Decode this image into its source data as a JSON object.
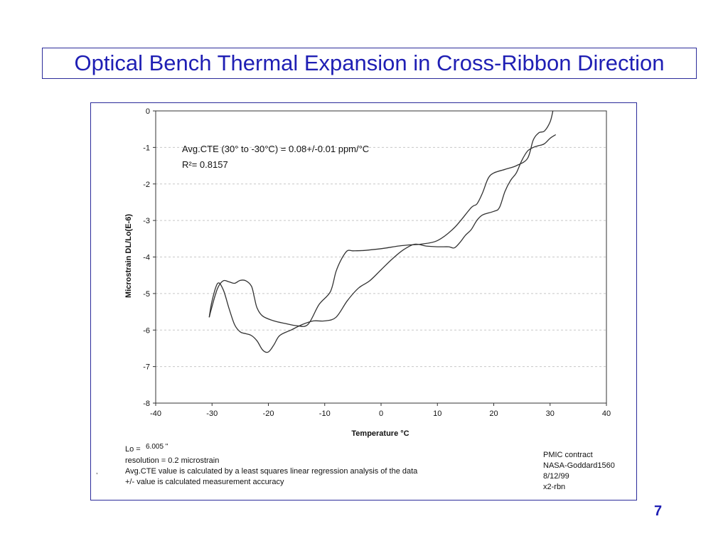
{
  "slide": {
    "title": "Optical Bench Thermal Expansion in Cross-Ribbon Direction",
    "number": "7"
  },
  "chart_data": {
    "type": "line",
    "xlabel": "Temperature °C",
    "ylabel": "Microstrain DL/Lo(E-6)",
    "xlim": [
      -40,
      40
    ],
    "ylim": [
      -8,
      0
    ],
    "x_ticks": [
      -40,
      -30,
      -20,
      -10,
      0,
      10,
      20,
      30,
      40
    ],
    "y_ticks": [
      0,
      -1,
      -2,
      -3,
      -4,
      -5,
      -6,
      -7,
      -8
    ],
    "grid": "horizontal dashed",
    "annotation": {
      "cte": "Avg.CTE (30° to -30°C) = 0.08+/-0.01 ppm/°C",
      "r2": "R²= 0.8157"
    },
    "series": [
      {
        "x": [
          -30.5,
          -30,
          -29,
          -28,
          -27,
          -26,
          -25,
          -24,
          -23,
          -22.5,
          -22,
          -21,
          -19,
          -17,
          -15,
          -13,
          -11,
          -9,
          -8,
          -7,
          -6,
          -5,
          -3,
          -1,
          1,
          3,
          5,
          7,
          10,
          13,
          16,
          17,
          18,
          19,
          20,
          22,
          24,
          26,
          27,
          28,
          29,
          30,
          30.5
        ],
        "y": [
          -5.65,
          -5.35,
          -4.85,
          -4.65,
          -4.68,
          -4.72,
          -4.64,
          -4.65,
          -4.8,
          -5.1,
          -5.4,
          -5.62,
          -5.75,
          -5.82,
          -5.88,
          -5.85,
          -5.3,
          -4.95,
          -4.4,
          -4.05,
          -3.83,
          -3.83,
          -3.82,
          -3.79,
          -3.75,
          -3.7,
          -3.67,
          -3.65,
          -3.55,
          -3.2,
          -2.65,
          -2.55,
          -2.25,
          -1.85,
          -1.7,
          -1.6,
          -1.5,
          -1.3,
          -0.8,
          -0.6,
          -0.55,
          -0.3,
          0
        ]
      },
      {
        "x": [
          -30.5,
          -30,
          -29,
          -28,
          -27,
          -26,
          -25,
          -24,
          -23,
          -22,
          -21,
          -20,
          -19,
          -18,
          -16,
          -14,
          -12,
          -10,
          -8,
          -6,
          -4,
          -2,
          0,
          2,
          4,
          6,
          8,
          10,
          12,
          13,
          14,
          15,
          16,
          17,
          18,
          20,
          21,
          22,
          23,
          24,
          25,
          26,
          27,
          28,
          29,
          30,
          31
        ],
        "y": [
          -5.65,
          -5.2,
          -4.72,
          -4.9,
          -5.4,
          -5.85,
          -6.05,
          -6.1,
          -6.15,
          -6.3,
          -6.55,
          -6.6,
          -6.4,
          -6.15,
          -6.0,
          -5.85,
          -5.75,
          -5.75,
          -5.65,
          -5.2,
          -4.85,
          -4.65,
          -4.35,
          -4.05,
          -3.8,
          -3.65,
          -3.7,
          -3.72,
          -3.72,
          -3.75,
          -3.6,
          -3.4,
          -3.25,
          -3.0,
          -2.85,
          -2.75,
          -2.65,
          -2.2,
          -1.9,
          -1.7,
          -1.35,
          -1.1,
          -1.0,
          -0.95,
          -0.9,
          -0.75,
          -0.65
        ]
      }
    ]
  },
  "notes": {
    "lo_label": "Lo =",
    "lo_value": "6.005 \"",
    "resolution": "resolution = 0.2 microstrain",
    "cte_note": "Avg.CTE value is calculated by a least squares linear regression analysis of the data",
    "accuracy_note": "+/- value is calculated measurement accuracy",
    "stray_mark": ","
  },
  "contract": {
    "line1": "PMIC contract",
    "line2": "NASA-Goddard1560",
    "line3": "8/12/99",
    "line4": "x2-rbn"
  },
  "colors": {
    "title": "#1f1fb4",
    "frame": "#2b2b9a",
    "curve": "#333333",
    "grid": "#c8c8c8"
  }
}
